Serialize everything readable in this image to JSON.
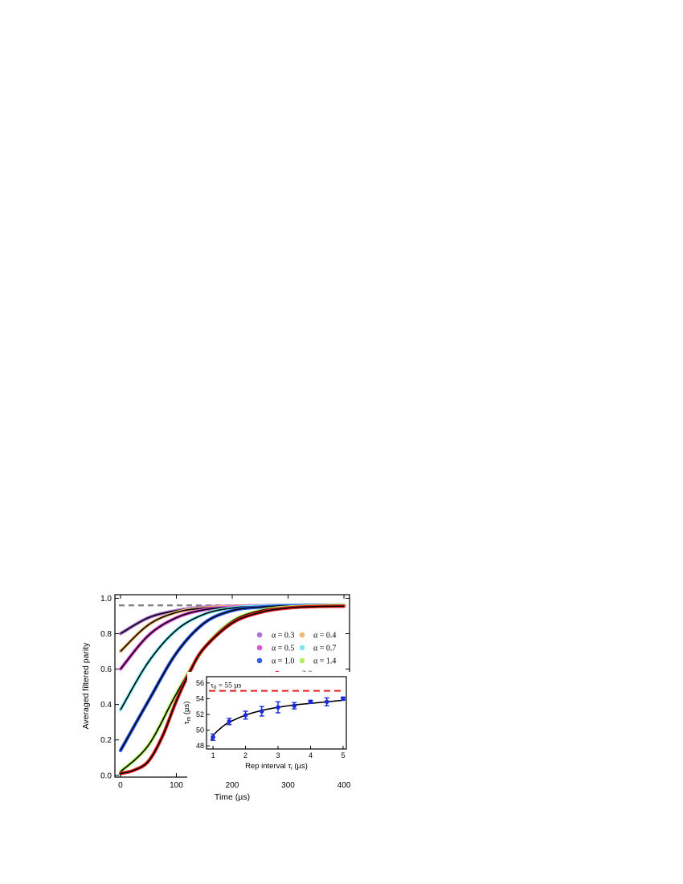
{
  "chart_data": [
    {
      "type": "line",
      "xlabel": "Time (µs)",
      "ylabel": "Averaged filtered parity",
      "xlim": [
        -10,
        410
      ],
      "ylim": [
        -0.01,
        1.02
      ],
      "xticks": [
        0,
        100,
        200,
        300,
        400
      ],
      "yticks": [
        0.0,
        0.2,
        0.4,
        0.6,
        0.8,
        1.0
      ],
      "ytick_labels": [
        "0.0",
        "0.2",
        "0.4",
        "0.6",
        "0.8",
        "1.0"
      ],
      "grid": false,
      "legend_position": "right, middle",
      "legend": [
        {
          "label": "α = 0.3",
          "color": "#b070d8"
        },
        {
          "label": "α = 0.4",
          "color": "#f0b878"
        },
        {
          "label": "α = 0.5",
          "color": "#e050d8"
        },
        {
          "label": "α = 0.7",
          "color": "#80e8f0"
        },
        {
          "label": "α = 1.0",
          "color": "#3060f0"
        },
        {
          "label": "α = 1.4",
          "color": "#b0f060"
        },
        {
          "label": "α = 2.0",
          "color": "#e82020"
        }
      ],
      "reference_line": {
        "y": 0.96,
        "style": "dashed",
        "color": "#808080"
      },
      "series": [
        {
          "name": "α = 0.3",
          "color": "#b070d8",
          "x": [
            0,
            50,
            100,
            150,
            200,
            250,
            300,
            350,
            400
          ],
          "y": [
            0.8,
            0.89,
            0.93,
            0.95,
            0.955,
            0.958,
            0.96,
            0.96,
            0.96
          ]
        },
        {
          "name": "α = 0.4",
          "color": "#f0b878",
          "x": [
            0,
            50,
            100,
            150,
            200,
            250,
            300,
            350,
            400
          ],
          "y": [
            0.7,
            0.85,
            0.92,
            0.945,
            0.953,
            0.958,
            0.96,
            0.96,
            0.96
          ]
        },
        {
          "name": "α = 0.5",
          "color": "#e050d8",
          "x": [
            0,
            50,
            100,
            150,
            200,
            250,
            300,
            350,
            400
          ],
          "y": [
            0.6,
            0.79,
            0.89,
            0.935,
            0.95,
            0.957,
            0.96,
            0.96,
            0.96
          ]
        },
        {
          "name": "α = 0.7",
          "color": "#80e8f0",
          "x": [
            0,
            50,
            100,
            150,
            200,
            250,
            300,
            350,
            400
          ],
          "y": [
            0.37,
            0.64,
            0.82,
            0.91,
            0.945,
            0.955,
            0.96,
            0.96,
            0.96
          ]
        },
        {
          "name": "α = 1.0",
          "color": "#3060f0",
          "x": [
            0,
            50,
            100,
            150,
            200,
            250,
            300,
            350,
            400
          ],
          "y": [
            0.14,
            0.42,
            0.69,
            0.86,
            0.93,
            0.95,
            0.957,
            0.96,
            0.96
          ]
        },
        {
          "name": "α = 1.4",
          "color": "#b0f060",
          "x": [
            0,
            50,
            100,
            150,
            200,
            250,
            300,
            350,
            400
          ],
          "y": [
            0.02,
            0.17,
            0.46,
            0.72,
            0.87,
            0.93,
            0.95,
            0.957,
            0.96
          ]
        },
        {
          "name": "α = 2.0",
          "color": "#e82020",
          "x": [
            0,
            25,
            50,
            75,
            100,
            125,
            150,
            200,
            250,
            300,
            350,
            400
          ],
          "y": [
            0.01,
            0.03,
            0.08,
            0.22,
            0.42,
            0.59,
            0.72,
            0.86,
            0.92,
            0.945,
            0.953,
            0.955
          ]
        }
      ]
    },
    {
      "type": "scatter",
      "xlabel": "Rep interval τ",
      "xlabel_subscript": "i",
      "xlabel_unit": " (µs)",
      "ylabel": "τ",
      "ylabel_subscript": "m",
      "ylabel_unit": " (µs)",
      "xlim": [
        0.8,
        5.1
      ],
      "ylim": [
        47.6,
        56.8
      ],
      "xticks": [
        1,
        2,
        3,
        4,
        5
      ],
      "yticks": [
        48,
        50,
        52,
        54,
        56
      ],
      "grid": false,
      "reference_line": {
        "y": 55,
        "label": "τ",
        "label_subscript": "0",
        "label_value": " = 55 µs",
        "color": "#e82020",
        "style": "dashed"
      },
      "points": {
        "color": "#1a2ad8",
        "x": [
          1.0,
          1.5,
          2.0,
          2.5,
          3.0,
          3.5,
          4.0,
          4.5,
          5.0
        ],
        "y": [
          49.1,
          51.1,
          51.9,
          52.4,
          52.9,
          53.1,
          53.6,
          53.6,
          54.0
        ],
        "yerr": [
          0.4,
          0.4,
          0.5,
          0.6,
          0.7,
          0.4,
          0.2,
          0.5,
          0.2
        ]
      },
      "fit": {
        "color": "#000000",
        "x": [
          0.95,
          1.0,
          1.25,
          1.5,
          2.0,
          2.5,
          3.0,
          3.5,
          4.0,
          4.5,
          5.0
        ],
        "y": [
          48.7,
          49.3,
          50.3,
          51.0,
          51.9,
          52.5,
          52.9,
          53.2,
          53.4,
          53.6,
          53.8
        ]
      }
    }
  ]
}
